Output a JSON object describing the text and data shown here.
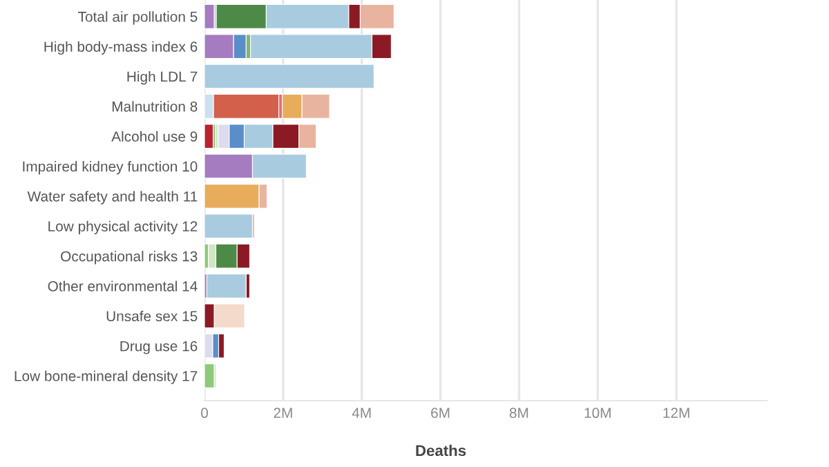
{
  "chart_data": {
    "type": "bar",
    "orientation": "horizontal",
    "stacked": true,
    "xlabel": "Deaths",
    "categories": [
      "Total air pollution 5",
      "High body-mass index 6",
      "High LDL 7",
      "Malnutrition 8",
      "Alcohol use 9",
      "Impaired kidney function 10",
      "Water safety and health 11",
      "Low physical activity 12",
      "Occupational risks 13",
      "Other environmental 14",
      "Unsafe sex 15",
      "Drug use 16",
      "Low bone-mineral density 17"
    ],
    "series": [
      {
        "color": "#a57cbf",
        "values": [
          0.25,
          0.74,
          null,
          null,
          null,
          1.22,
          null,
          null,
          null,
          0.06,
          null,
          null,
          null
        ]
      },
      {
        "color": "#c5c0cc",
        "values": [
          0.05,
          null,
          null,
          null,
          null,
          null,
          null,
          null,
          null,
          null,
          null,
          null,
          null
        ]
      },
      {
        "color": "#cddff0",
        "values": [
          null,
          null,
          null,
          0.23,
          null,
          null,
          null,
          null,
          null,
          null,
          null,
          null,
          null
        ]
      },
      {
        "color": "#d3604a",
        "values": [
          null,
          null,
          null,
          1.66,
          null,
          null,
          null,
          null,
          null,
          null,
          null,
          null,
          null
        ]
      },
      {
        "color": "#e0707a",
        "values": [
          null,
          null,
          null,
          0.09,
          null,
          null,
          null,
          null,
          null,
          null,
          null,
          null,
          null
        ]
      },
      {
        "color": "#b8232f",
        "values": [
          null,
          null,
          null,
          null,
          0.22,
          null,
          null,
          null,
          null,
          null,
          null,
          null,
          null
        ]
      },
      {
        "color": "#8fc97a",
        "values": [
          null,
          null,
          null,
          null,
          0.06,
          null,
          null,
          null,
          0.1,
          null,
          null,
          null,
          0.25
        ]
      },
      {
        "color": "#cfe8c3",
        "values": [
          null,
          null,
          null,
          null,
          0.07,
          null,
          null,
          null,
          0.19,
          null,
          null,
          null,
          0.05
        ]
      },
      {
        "color": "#4e8a47",
        "values": [
          1.27,
          null,
          null,
          null,
          null,
          null,
          null,
          null,
          0.54,
          null,
          null,
          null,
          null
        ]
      },
      {
        "color": "#dcdcee",
        "values": [
          null,
          null,
          null,
          null,
          0.28,
          null,
          null,
          null,
          null,
          null,
          null,
          0.21,
          null
        ]
      },
      {
        "color": "#5b8ec9",
        "values": [
          null,
          0.32,
          null,
          null,
          0.38,
          null,
          null,
          null,
          null,
          null,
          null,
          0.15,
          null
        ]
      },
      {
        "color": "#7fb86e",
        "values": [
          null,
          0.11,
          null,
          null,
          null,
          null,
          null,
          null,
          null,
          null,
          null,
          null,
          null
        ]
      },
      {
        "color": "#a9cbe0",
        "values": [
          2.1,
          3.09,
          4.31,
          null,
          0.73,
          1.37,
          null,
          1.22,
          null,
          1.0,
          null,
          null,
          null
        ]
      },
      {
        "color": "#8b1a24",
        "values": [
          0.29,
          0.49,
          null,
          null,
          0.66,
          null,
          null,
          null,
          0.32,
          0.09,
          0.25,
          0.14,
          null
        ]
      },
      {
        "color": "#e8ad5b",
        "values": [
          null,
          null,
          null,
          0.5,
          null,
          null,
          1.39,
          null,
          null,
          null,
          null,
          null,
          null
        ]
      },
      {
        "color": "#e9b49f",
        "values": [
          0.86,
          null,
          null,
          0.7,
          0.44,
          null,
          0.2,
          0.05,
          null,
          null,
          null,
          null,
          null
        ]
      },
      {
        "color": "#f3dacb",
        "values": [
          null,
          null,
          null,
          null,
          null,
          null,
          null,
          null,
          null,
          null,
          0.77,
          null,
          null
        ]
      }
    ],
    "xlim": [
      0,
      14.3
    ],
    "xticks": [
      0,
      {
        "value": 2,
        "label": "2M"
      },
      {
        "value": 4,
        "label": "4M"
      },
      {
        "value": 6,
        "label": "6M"
      },
      {
        "value": 8,
        "label": "8M"
      },
      {
        "value": 10,
        "label": "10M"
      },
      {
        "value": 12,
        "label": "12M"
      }
    ],
    "grid": "x"
  }
}
